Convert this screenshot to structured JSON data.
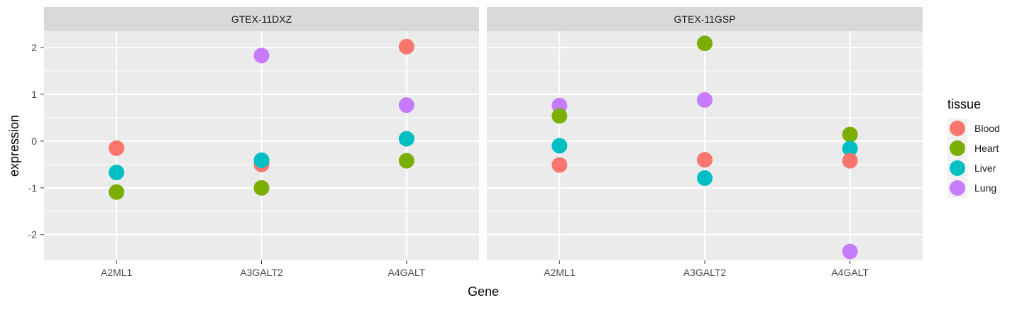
{
  "chart_data": {
    "type": "scatter",
    "facet_type": "horizontal panels",
    "xlabel": "Gene",
    "ylabel": "expression",
    "categories": [
      "A2ML1",
      "A3GALT2",
      "A4GALT"
    ],
    "yticks": [
      2,
      1,
      0,
      -1,
      -2
    ],
    "ytick_labels": [
      "2",
      "1",
      "0",
      "-1",
      "-2"
    ],
    "ylim": [
      -2.55,
      2.35
    ],
    "grid": true,
    "legend": {
      "title": "tissue",
      "position": "right",
      "entries": [
        {
          "label": "Blood",
          "color": "#F8766D"
        },
        {
          "label": "Heart",
          "color": "#7CAE00"
        },
        {
          "label": "Liver",
          "color": "#00BFC4"
        },
        {
          "label": "Lung",
          "color": "#C77CFF"
        }
      ]
    },
    "panels": [
      {
        "title": "GTEX-11DXZ",
        "points": [
          {
            "gene": "A2ML1",
            "tissue": "Blood",
            "value": -0.15
          },
          {
            "gene": "A2ML1",
            "tissue": "Liver",
            "value": -0.67
          },
          {
            "gene": "A2ML1",
            "tissue": "Heart",
            "value": -1.09
          },
          {
            "gene": "A3GALT2",
            "tissue": "Lung",
            "value": 1.83
          },
          {
            "gene": "A3GALT2",
            "tissue": "Blood",
            "value": -0.5
          },
          {
            "gene": "A3GALT2",
            "tissue": "Liver",
            "value": -0.41
          },
          {
            "gene": "A3GALT2",
            "tissue": "Heart",
            "value": -1.0
          },
          {
            "gene": "A4GALT",
            "tissue": "Blood",
            "value": 2.02
          },
          {
            "gene": "A4GALT",
            "tissue": "Lung",
            "value": 0.77
          },
          {
            "gene": "A4GALT",
            "tissue": "Liver",
            "value": 0.05
          },
          {
            "gene": "A4GALT",
            "tissue": "Heart",
            "value": -0.42
          }
        ]
      },
      {
        "title": "GTEX-11GSP",
        "points": [
          {
            "gene": "A2ML1",
            "tissue": "Lung",
            "value": 0.76
          },
          {
            "gene": "A2ML1",
            "tissue": "Heart",
            "value": 0.54
          },
          {
            "gene": "A2ML1",
            "tissue": "Liver",
            "value": -0.1
          },
          {
            "gene": "A2ML1",
            "tissue": "Blood",
            "value": -0.51
          },
          {
            "gene": "A3GALT2",
            "tissue": "Heart",
            "value": 2.09
          },
          {
            "gene": "A3GALT2",
            "tissue": "Lung",
            "value": 0.88
          },
          {
            "gene": "A3GALT2",
            "tissue": "Blood",
            "value": -0.4
          },
          {
            "gene": "A3GALT2",
            "tissue": "Liver",
            "value": -0.79
          },
          {
            "gene": "A4GALT",
            "tissue": "Heart",
            "value": 0.14
          },
          {
            "gene": "A4GALT",
            "tissue": "Liver",
            "value": -0.16
          },
          {
            "gene": "A4GALT",
            "tissue": "Blood",
            "value": -0.42
          },
          {
            "gene": "A4GALT",
            "tissue": "Lung",
            "value": -2.36
          }
        ]
      }
    ]
  }
}
